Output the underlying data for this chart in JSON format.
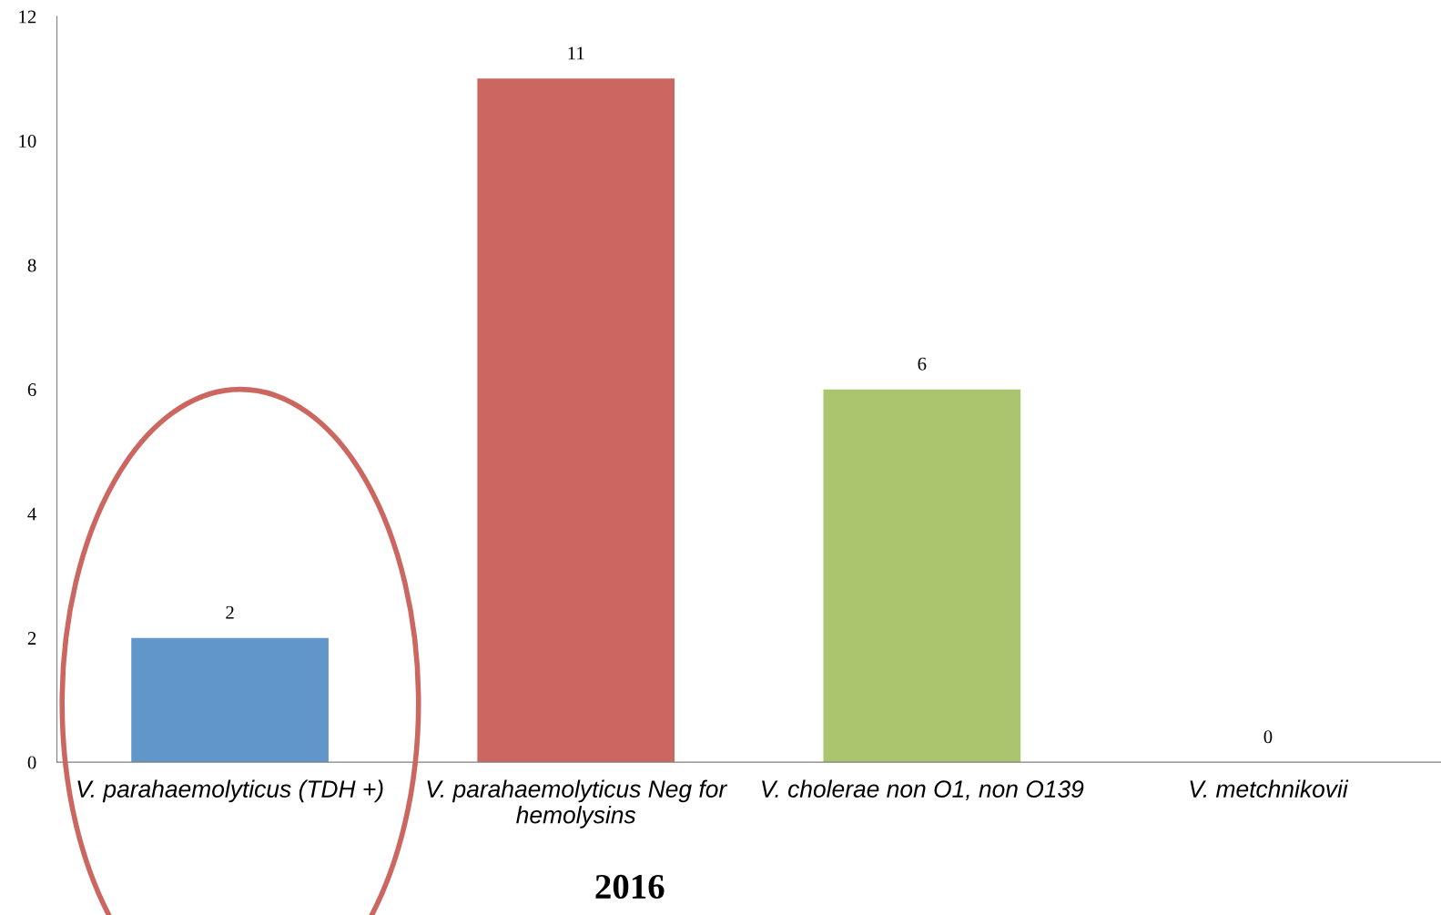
{
  "chart_data": {
    "type": "bar",
    "title": "2016",
    "categories": [
      "V. parahaemolyticus (TDH +)",
      "V. parahaemolyticus Neg for\nhemolysins",
      "V. cholerae non O1, non O139",
      "V. metchnikovii"
    ],
    "values": [
      2,
      11,
      6,
      0
    ],
    "colors": [
      "#6096c9",
      "#cc6660",
      "#abc46e",
      "#8064a2"
    ],
    "ylim": [
      0,
      12
    ],
    "yticks": [
      0,
      2,
      4,
      6,
      8,
      10,
      12
    ],
    "data_labels": true,
    "grid": false,
    "legend": false
  }
}
